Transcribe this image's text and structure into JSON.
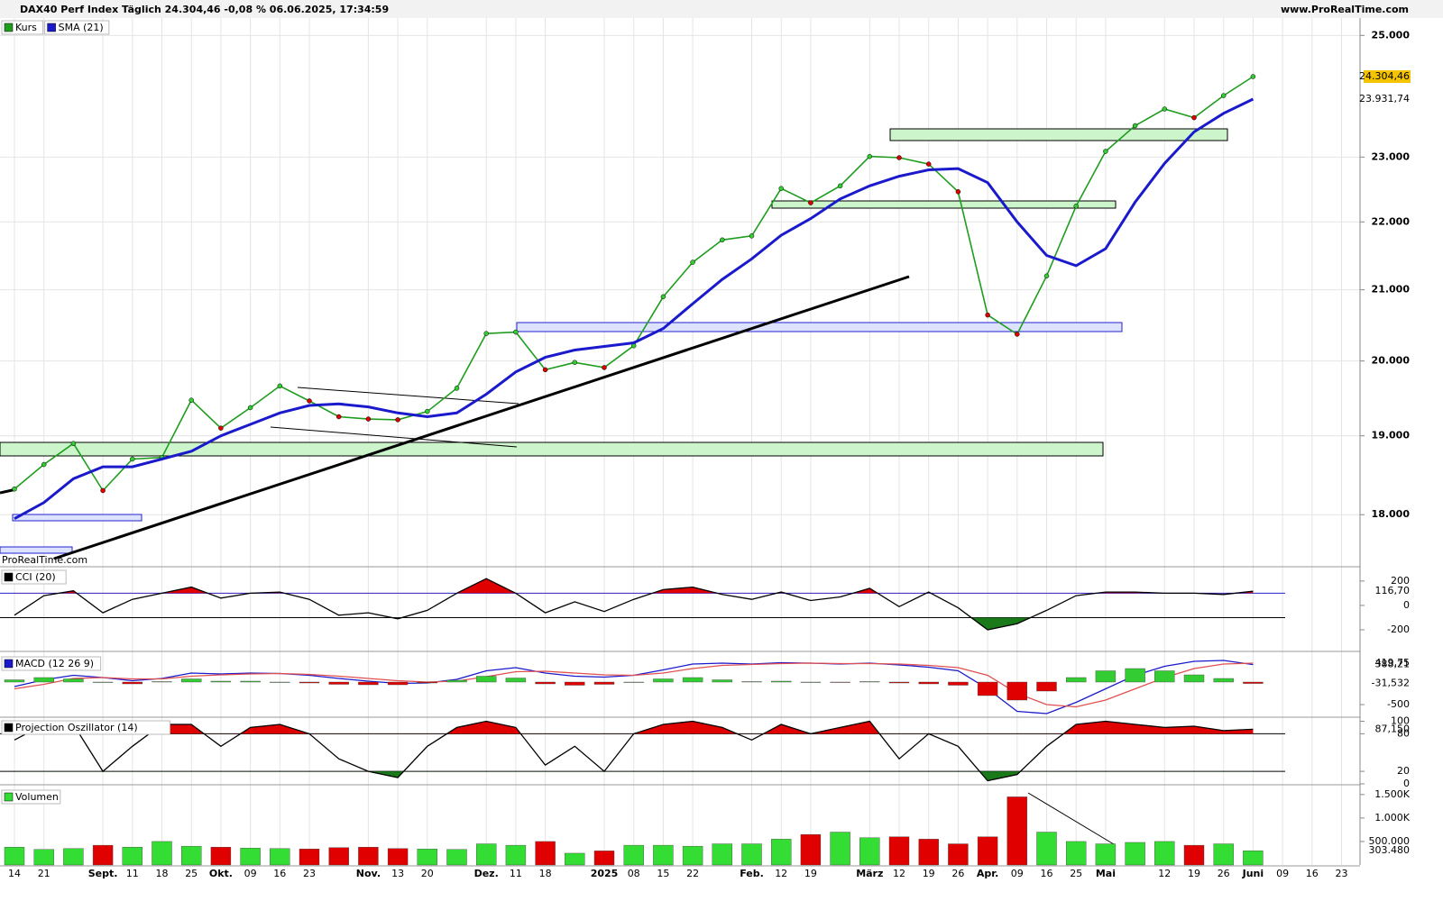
{
  "chart_data": [
    {
      "type": "line",
      "title": "DAX40 Perf Index Täglich 24.304,46 -0,08 % 06.06.2025, 17:34:59",
      "source": "www.ProRealTime.com",
      "watermark": "ProRealTime.com",
      "log_scale": true,
      "grid": true,
      "ylim": [
        17380,
        25300
      ],
      "yticks": [
        {
          "value": 18000,
          "label": "18.000"
        },
        {
          "value": 19000,
          "label": "19.000"
        },
        {
          "value": 20000,
          "label": "20.000"
        },
        {
          "value": 21000,
          "label": "21.000"
        },
        {
          "value": 22000,
          "label": "22.000"
        },
        {
          "value": 23000,
          "label": "23.000"
        },
        {
          "value": 25000,
          "label": "25.000"
        }
      ],
      "series": [
        {
          "name": "Kurs",
          "color": "#1f9d1f",
          "values": [
            18320,
            18630,
            18900,
            18300,
            18700,
            18720,
            19470,
            19100,
            19370,
            19660,
            19460,
            19250,
            19220,
            19210,
            19320,
            19630,
            20380,
            20400,
            19880,
            19980,
            19910,
            20210,
            20900,
            21400,
            21730,
            21790,
            22510,
            22290,
            22550,
            23010,
            22990,
            22890,
            22460,
            20640,
            20370,
            21200,
            22240,
            23090,
            23500,
            23770,
            23630,
            23990,
            24304.46,
            null,
            null,
            null
          ],
          "value_labels": [
            null,
            null,
            null,
            null,
            null,
            null,
            null,
            null,
            null,
            null,
            null,
            null,
            null,
            null,
            null,
            null,
            null,
            null,
            null,
            null,
            null,
            null,
            null,
            null,
            null,
            null,
            null,
            null,
            null,
            null,
            null,
            null,
            null,
            null,
            null,
            null,
            null,
            null,
            null,
            null,
            null,
            null,
            "24.304,46",
            null,
            null,
            null
          ]
        },
        {
          "name": "SMA (21)",
          "color": "#1a1acc",
          "values": [
            17950,
            18150,
            18450,
            18600,
            18600,
            18700,
            18800,
            19000,
            19150,
            19300,
            19400,
            19420,
            19380,
            19300,
            19250,
            19300,
            19550,
            19850,
            20050,
            20150,
            20200,
            20250,
            20450,
            20800,
            21150,
            21450,
            21800,
            22050,
            22350,
            22550,
            22700,
            22800,
            22820,
            22600,
            22000,
            21500,
            21350,
            21600,
            22300,
            22900,
            23400,
            23700,
            23931.74,
            null,
            null,
            null
          ],
          "value_labels": [
            null,
            null,
            null,
            null,
            null,
            null,
            null,
            null,
            null,
            null,
            null,
            null,
            null,
            null,
            null,
            null,
            null,
            null,
            null,
            null,
            null,
            null,
            null,
            null,
            null,
            null,
            null,
            null,
            null,
            null,
            null,
            null,
            null,
            null,
            null,
            null,
            null,
            null,
            null,
            null,
            null,
            null,
            "23.931,74",
            null,
            null,
            null
          ]
        }
      ]
    },
    {
      "type": "line",
      "ylim": [
        -370,
        310
      ],
      "yticks": [
        -200,
        0,
        200
      ],
      "levels": [
        100,
        -100
      ],
      "fill_above": "#e00000",
      "fill_below": "#1a7a1a",
      "series": [
        {
          "name": "CCI (20)",
          "color": "#000000",
          "values": [
            -80,
            80,
            120,
            -60,
            50,
            100,
            150,
            60,
            100,
            110,
            50,
            -80,
            -60,
            -110,
            -40,
            100,
            220,
            100,
            -60,
            30,
            -50,
            50,
            130,
            150,
            90,
            50,
            110,
            40,
            70,
            140,
            -10,
            110,
            -20,
            -200,
            -150,
            -40,
            80,
            110,
            110,
            100,
            100,
            90,
            116.7,
            null,
            null,
            null
          ],
          "value_labels": [
            null,
            null,
            null,
            null,
            null,
            null,
            null,
            null,
            null,
            null,
            null,
            null,
            null,
            null,
            null,
            null,
            null,
            null,
            null,
            null,
            null,
            null,
            null,
            null,
            null,
            null,
            null,
            null,
            null,
            null,
            null,
            null,
            null,
            null,
            null,
            null,
            null,
            null,
            null,
            null,
            null,
            null,
            "116,70",
            null,
            null,
            null
          ]
        }
      ]
    },
    {
      "type": "line",
      "ylim": [
        -760,
        620
      ],
      "yticks": [
        -500
      ],
      "series": [
        {
          "name": "MACD (12 26 9)",
          "color": "#1a1acc",
          "values": [
            -100,
            50,
            150,
            100,
            30,
            80,
            200,
            180,
            200,
            190,
            150,
            80,
            20,
            -30,
            -20,
            60,
            250,
            320,
            200,
            130,
            110,
            150,
            270,
            400,
            420,
            400,
            430,
            420,
            400,
            420,
            380,
            330,
            250,
            -150,
            -650,
            -700,
            -450,
            -150,
            150,
            350,
            460,
            480,
            388.21,
            null,
            null,
            null
          ],
          "value_labels": [
            null,
            null,
            null,
            null,
            null,
            null,
            null,
            null,
            null,
            null,
            null,
            null,
            null,
            null,
            null,
            null,
            null,
            null,
            null,
            null,
            null,
            null,
            null,
            null,
            null,
            null,
            null,
            null,
            null,
            null,
            null,
            null,
            null,
            null,
            null,
            null,
            null,
            null,
            null,
            null,
            null,
            null,
            "388,21",
            null,
            null,
            null
          ]
        },
        {
          "color": "#e05050",
          "values": [
            -150,
            -50,
            80,
            100,
            70,
            70,
            130,
            160,
            180,
            190,
            170,
            130,
            80,
            30,
            0,
            20,
            120,
            230,
            240,
            200,
            160,
            150,
            200,
            300,
            370,
            390,
            410,
            420,
            410,
            410,
            400,
            370,
            320,
            150,
            -250,
            -500,
            -550,
            -400,
            -150,
            100,
            300,
            400,
            419.75,
            null,
            null,
            null
          ],
          "value_labels": [
            null,
            null,
            null,
            null,
            null,
            null,
            null,
            null,
            null,
            null,
            null,
            null,
            null,
            null,
            null,
            null,
            null,
            null,
            null,
            null,
            null,
            null,
            null,
            null,
            null,
            null,
            null,
            null,
            null,
            null,
            null,
            null,
            null,
            null,
            null,
            null,
            null,
            null,
            null,
            null,
            null,
            null,
            "419,75",
            null,
            null,
            null
          ]
        },
        {
          "type": "bar",
          "color": "#33cc33",
          "negative_color": "#e00000",
          "values": [
            50,
            100,
            70,
            0,
            -40,
            10,
            70,
            20,
            20,
            0,
            -20,
            -50,
            -60,
            -60,
            -20,
            40,
            130,
            90,
            -40,
            -70,
            -50,
            0,
            70,
            100,
            50,
            10,
            20,
            0,
            -10,
            10,
            -20,
            -40,
            -70,
            -300,
            -400,
            -200,
            100,
            250,
            300,
            250,
            160,
            80,
            -31.532,
            null,
            null,
            null
          ],
          "value_labels": [
            null,
            null,
            null,
            null,
            null,
            null,
            null,
            null,
            null,
            null,
            null,
            null,
            null,
            null,
            null,
            null,
            null,
            null,
            null,
            null,
            null,
            null,
            null,
            null,
            null,
            null,
            null,
            null,
            null,
            null,
            null,
            null,
            null,
            null,
            null,
            null,
            null,
            null,
            null,
            null,
            null,
            null,
            "-31,532",
            null,
            null,
            null
          ]
        }
      ]
    },
    {
      "type": "line",
      "ylim": [
        0,
        105
      ],
      "yticks": [
        0,
        20,
        80,
        100
      ],
      "levels": [
        80,
        20
      ],
      "fill_above": "#e00000",
      "fill_below": "#1a7a1a",
      "series": [
        {
          "name": "Projection Oszillator (14)",
          "color": "#000000",
          "values": [
            70,
            95,
            95,
            20,
            60,
            95,
            95,
            60,
            90,
            95,
            80,
            40,
            20,
            10,
            60,
            90,
            100,
            90,
            30,
            60,
            20,
            80,
            95,
            100,
            90,
            70,
            95,
            80,
            90,
            100,
            40,
            80,
            60,
            5,
            15,
            60,
            95,
            100,
            95,
            90,
            92,
            85,
            87.15,
            null,
            null,
            null
          ],
          "value_labels": [
            null,
            null,
            null,
            null,
            null,
            null,
            null,
            null,
            null,
            null,
            null,
            null,
            null,
            null,
            null,
            null,
            null,
            null,
            null,
            null,
            null,
            null,
            null,
            null,
            null,
            null,
            null,
            null,
            null,
            null,
            null,
            null,
            null,
            null,
            null,
            null,
            null,
            null,
            null,
            null,
            null,
            null,
            "87,150",
            null,
            null,
            null
          ]
        }
      ]
    },
    {
      "type": "bar",
      "ylim": [
        0,
        1650000
      ],
      "yticks": [
        {
          "value": 500000,
          "label": "500.000"
        },
        {
          "value": 1000000,
          "label": "1.000K"
        },
        {
          "value": 1500000,
          "label": "1.500K"
        }
      ],
      "categories": [
        "14",
        "21",
        null,
        "Sept.",
        "11",
        "18",
        "25",
        "Okt.",
        "09",
        "16",
        "23",
        null,
        "Nov.",
        "13",
        "20",
        null,
        "Dez.",
        "11",
        "18",
        null,
        "2025",
        "08",
        "15",
        "22",
        null,
        "Feb.",
        "12",
        "19",
        null,
        "März",
        "12",
        "19",
        "26",
        "Apr.",
        "09",
        "16",
        "25",
        "Mai",
        null,
        "12",
        "19",
        "26",
        "Juni",
        "09",
        "16",
        "23"
      ],
      "series": [
        {
          "name": "Volumen",
          "color": "#33dd33",
          "negative_color": "#e00000",
          "values": [
            380000,
            330000,
            350000,
            420000,
            380000,
            500000,
            400000,
            380000,
            360000,
            350000,
            340000,
            370000,
            380000,
            350000,
            340000,
            330000,
            450000,
            420000,
            500000,
            250000,
            300000,
            420000,
            420000,
            400000,
            450000,
            450000,
            550000,
            650000,
            700000,
            580000,
            600000,
            550000,
            450000,
            600000,
            1450000,
            700000,
            500000,
            450000,
            480000,
            500000,
            420000,
            450000,
            303480,
            null,
            null,
            null
          ],
          "value_labels": [
            null,
            null,
            null,
            null,
            null,
            null,
            null,
            null,
            null,
            null,
            null,
            null,
            null,
            null,
            null,
            null,
            null,
            null,
            null,
            null,
            null,
            null,
            null,
            null,
            null,
            null,
            null,
            null,
            null,
            null,
            null,
            null,
            null,
            null,
            null,
            null,
            null,
            null,
            null,
            null,
            null,
            null,
            "303.480",
            null,
            null,
            null
          ]
        }
      ]
    }
  ]
}
